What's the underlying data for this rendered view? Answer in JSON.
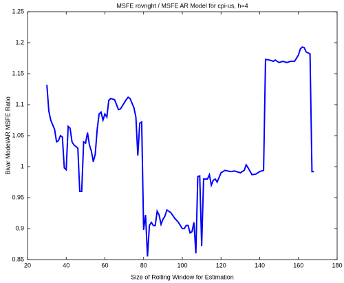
{
  "chart_data": {
    "type": "line",
    "title": "MSFE rovnght / MSFE AR Model for cpi-us, h=4",
    "xlabel": "Size of Rolling Window for Estimation",
    "ylabel": "Bivar Model/AR MSFE Ratio",
    "x": [
      30,
      31,
      32,
      34,
      35,
      36,
      37,
      38,
      39,
      40,
      41,
      42,
      43,
      44,
      46,
      47,
      48,
      49,
      50,
      51,
      52,
      53,
      54,
      55,
      56,
      57,
      58,
      59,
      60,
      61,
      62,
      63,
      65,
      67,
      68,
      70,
      71,
      72,
      73,
      75,
      76,
      77,
      78,
      79,
      80,
      81,
      82,
      83,
      84,
      85,
      86,
      87,
      88,
      89,
      90,
      91,
      92,
      94,
      96,
      98,
      100,
      101,
      102,
      103,
      104,
      105,
      106,
      107,
      108,
      109,
      110,
      111,
      113,
      114,
      115,
      116,
      117,
      118,
      120,
      122,
      125,
      127,
      130,
      132,
      133,
      134,
      136,
      138,
      140,
      141,
      142,
      143,
      145,
      147,
      148,
      150,
      152,
      154,
      156,
      158,
      160,
      161,
      162,
      163,
      164,
      166,
      167,
      168
    ],
    "series": [
      {
        "name": "MSFE ratio",
        "color": "#0000ff",
        "values": [
          1.132,
          1.09,
          1.075,
          1.06,
          1.04,
          1.042,
          1.05,
          1.048,
          0.998,
          0.995,
          1.065,
          1.062,
          1.04,
          1.035,
          1.03,
          0.96,
          0.96,
          1.04,
          1.038,
          1.055,
          1.035,
          1.025,
          1.008,
          1.02,
          1.06,
          1.085,
          1.088,
          1.075,
          1.085,
          1.08,
          1.107,
          1.11,
          1.108,
          1.092,
          1.093,
          1.103,
          1.108,
          1.112,
          1.11,
          1.095,
          1.08,
          1.018,
          1.07,
          1.072,
          0.898,
          0.922,
          0.855,
          0.905,
          0.91,
          0.905,
          0.905,
          0.928,
          0.922,
          0.907,
          0.915,
          0.92,
          0.93,
          0.926,
          0.917,
          0.91,
          0.9,
          0.9,
          0.905,
          0.905,
          0.893,
          0.895,
          0.91,
          0.86,
          0.984,
          0.985,
          0.872,
          0.98,
          0.98,
          0.987,
          0.97,
          0.978,
          0.98,
          0.975,
          0.99,
          0.994,
          0.992,
          0.993,
          0.99,
          0.994,
          1.003,
          0.998,
          0.987,
          0.988,
          0.992,
          0.993,
          0.994,
          1.173,
          1.172,
          1.17,
          1.172,
          1.168,
          1.17,
          1.168,
          1.17,
          1.17,
          1.18,
          1.19,
          1.193,
          1.192,
          1.185,
          1.182,
          0.992,
          0.992
        ]
      }
    ],
    "xlim": [
      20,
      180
    ],
    "xticks": [
      20,
      40,
      60,
      80,
      100,
      120,
      140,
      160,
      180
    ],
    "ylim": [
      0.85,
      1.25
    ],
    "yticks": [
      0.85,
      0.9,
      0.95,
      1,
      1.05,
      1.1,
      1.15,
      1.2,
      1.25
    ],
    "grid": false
  }
}
